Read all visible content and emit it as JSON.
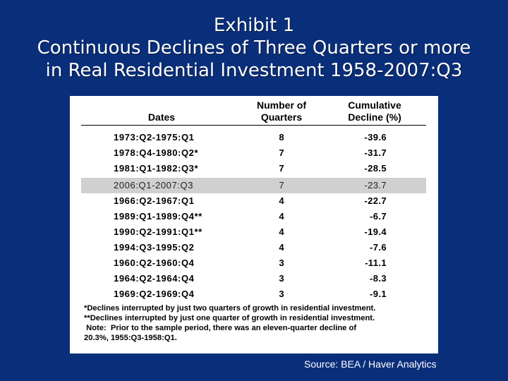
{
  "title": {
    "line1": "Exhibit 1",
    "line2": "Continuous Declines of Three Quarters or more",
    "line3": "in Real Residential Investment 1958-2007:Q3"
  },
  "table": {
    "headers": {
      "dates": "Dates",
      "quarters_l1": "Number of",
      "quarters_l2": "Quarters",
      "decline_l1": "Cumulative",
      "decline_l2": "Decline (%)"
    },
    "rows": [
      {
        "dates": "1973:Q2-1975:Q1",
        "quarters": "8",
        "decline": "-39.6"
      },
      {
        "dates": "1978:Q4-1980:Q2*",
        "quarters": "7",
        "decline": "-31.7"
      },
      {
        "dates": "1981:Q1-1982:Q3*",
        "quarters": "7",
        "decline": "-28.5"
      },
      {
        "dates": "2006:Q1-2007:Q3",
        "quarters": "7",
        "decline": "-23.7"
      },
      {
        "dates": "1966:Q2-1967:Q1",
        "quarters": "4",
        "decline": "-22.7"
      },
      {
        "dates": "1989:Q1-1989:Q4**",
        "quarters": "4",
        "decline": "-6.7"
      },
      {
        "dates": "1990:Q2-1991:Q1**",
        "quarters": "4",
        "decline": "-19.4"
      },
      {
        "dates": "1994:Q3-1995:Q2",
        "quarters": "4",
        "decline": "-7.6"
      },
      {
        "dates": "1960:Q2-1960:Q4",
        "quarters": "3",
        "decline": "-11.1"
      },
      {
        "dates": "1964:Q2-1964:Q4",
        "quarters": "3",
        "decline": "-8.3"
      },
      {
        "dates": "1969:Q2-1969:Q4",
        "quarters": "3",
        "decline": "-9.1"
      }
    ],
    "highlight_color": "#d0d0d0"
  },
  "notes": {
    "n1": "*Declines interrupted by just two quarters of growth in residential investment.",
    "n2": "**Declines interrupted by just one quarter of growth in residential investment.",
    "n3": " Note:  Prior to the sample period, there was an eleven-quarter decline of",
    "n4": "20.3%, 1955:Q3-1958:Q1."
  },
  "source": "Source:  BEA / Haver Analytics",
  "colors": {
    "background": "#0a2f7a",
    "panel": "#ffffff"
  }
}
